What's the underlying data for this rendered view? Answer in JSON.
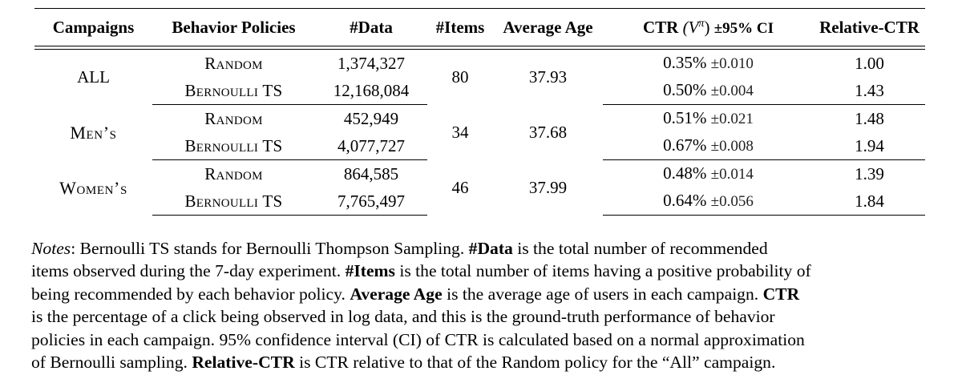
{
  "table": {
    "headers": {
      "campaigns": "Campaigns",
      "policies": "Behavior Policies",
      "data": "#Data",
      "items": "#Items",
      "avg_age": "Average Age",
      "ctr_label": "CTR",
      "ctr_symbol": "(V",
      "ctr_sup": "π",
      "ctr_close": ")",
      "ctr_ci": "±95% CI",
      "relative": "Relative-CTR"
    },
    "groups": [
      {
        "campaign": "ALL",
        "items": "80",
        "avg_age": "37.93",
        "rows": [
          {
            "policy": "Random",
            "data": "1,374,327",
            "ctr": "0.35%",
            "ci": "±0.010",
            "relative": "1.00"
          },
          {
            "policy": "Bernoulli TS",
            "data": "12,168,084",
            "ctr": "0.50%",
            "ci": "±0.004",
            "relative": "1.43"
          }
        ]
      },
      {
        "campaign": "Men’s",
        "items": "34",
        "avg_age": "37.68",
        "rows": [
          {
            "policy": "Random",
            "data": "452,949",
            "ctr": "0.51%",
            "ci": "±0.021",
            "relative": "1.48"
          },
          {
            "policy": "Bernoulli TS",
            "data": "4,077,727",
            "ctr": "0.67%",
            "ci": "±0.008",
            "relative": "1.94"
          }
        ]
      },
      {
        "campaign": "Women’s",
        "items": "46",
        "avg_age": "37.99",
        "rows": [
          {
            "policy": "Random",
            "data": "864,585",
            "ctr": "0.48%",
            "ci": "±0.014",
            "relative": "1.39"
          },
          {
            "policy": "Bernoulli TS",
            "data": "7,765,497",
            "ctr": "0.64%",
            "ci": "±0.056",
            "relative": "1.84"
          }
        ]
      }
    ]
  },
  "notes": {
    "lines": [
      [
        {
          "t": "Notes",
          "s": "i"
        },
        {
          "t": ": Bernoulli TS stands for Bernoulli Thompson Sampling. "
        },
        {
          "t": "#Data",
          "s": "b"
        },
        {
          "t": " is the total number of recommended"
        }
      ],
      [
        {
          "t": "items observed during the 7-day experiment. "
        },
        {
          "t": "#Items",
          "s": "b"
        },
        {
          "t": " is the total number of items having a positive probability of"
        }
      ],
      [
        {
          "t": "being recommended by each behavior policy. "
        },
        {
          "t": "Average Age",
          "s": "b"
        },
        {
          "t": " is the average age of users in each campaign. "
        },
        {
          "t": "CTR",
          "s": "b"
        }
      ],
      [
        {
          "t": "is the percentage of a click being observed in log data, and this is the ground-truth performance of behavior"
        }
      ],
      [
        {
          "t": "policies in each campaign. 95% confidence interval (CI) of CTR is calculated based on a normal approximation"
        }
      ],
      [
        {
          "t": "of Bernoulli sampling. "
        },
        {
          "t": "Relative-CTR",
          "s": "b"
        },
        {
          "t": " is CTR relative to that of the Random policy for the “All” campaign."
        }
      ]
    ]
  }
}
